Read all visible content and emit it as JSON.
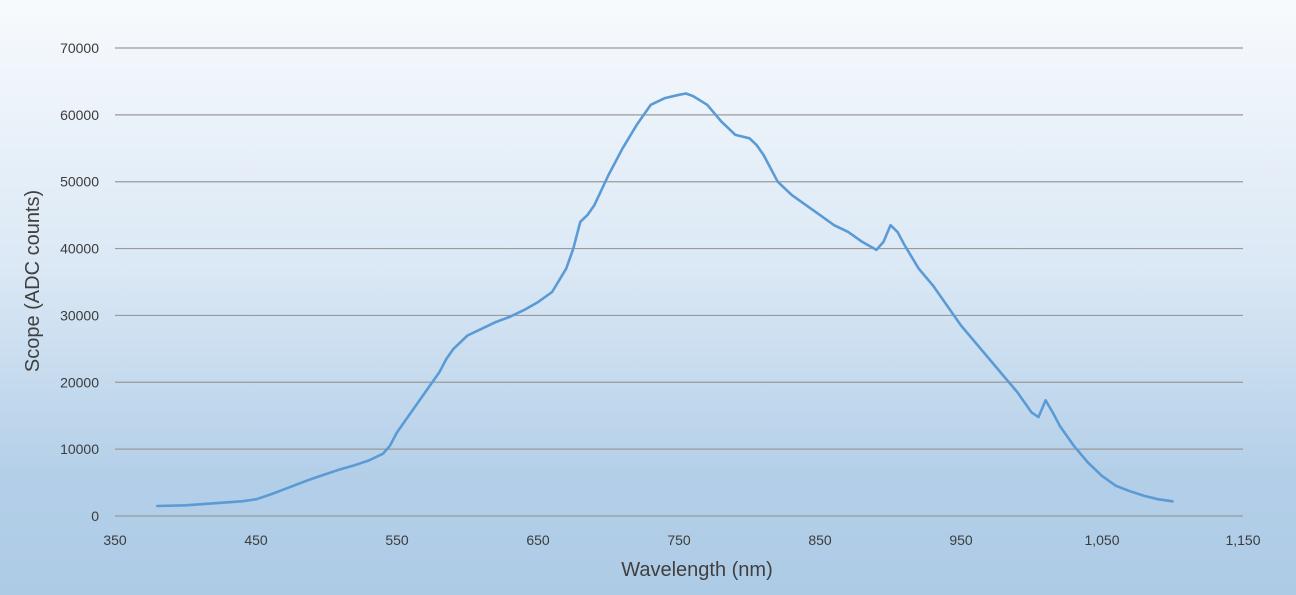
{
  "chart_data": {
    "type": "line",
    "title": "",
    "xlabel": "Wavelength (nm)",
    "ylabel": "Scope (ADC counts)",
    "xlim": [
      350,
      1150
    ],
    "ylim": [
      0,
      70000
    ],
    "x_ticks": [
      350,
      450,
      550,
      650,
      750,
      850,
      950,
      1050,
      1150
    ],
    "x_tick_labels": [
      "350",
      "450",
      "550",
      "650",
      "750",
      "850",
      "950",
      "1,050",
      "1,150"
    ],
    "y_ticks": [
      0,
      10000,
      20000,
      30000,
      40000,
      50000,
      60000,
      70000
    ],
    "y_tick_labels": [
      "0",
      "10000",
      "20000",
      "30000",
      "40000",
      "50000",
      "60000",
      "70000"
    ],
    "grid": true,
    "legend": "none",
    "line_color": "#5b9bd5",
    "series": [
      {
        "x": [
          380,
          400,
          420,
          440,
          450,
          460,
          470,
          480,
          490,
          500,
          510,
          520,
          530,
          540,
          545,
          550,
          555,
          560,
          570,
          580,
          585,
          590,
          600,
          610,
          620,
          630,
          640,
          650,
          660,
          670,
          675,
          680,
          685,
          690,
          700,
          710,
          720,
          730,
          740,
          750,
          755,
          760,
          770,
          780,
          790,
          800,
          805,
          810,
          820,
          830,
          840,
          850,
          860,
          870,
          880,
          890,
          895,
          900,
          905,
          910,
          920,
          930,
          940,
          950,
          960,
          970,
          980,
          990,
          1000,
          1005,
          1010,
          1015,
          1020,
          1030,
          1040,
          1050,
          1060,
          1070,
          1080,
          1090,
          1100
        ],
        "y": [
          1500,
          1600,
          1900,
          2200,
          2500,
          3200,
          4000,
          4800,
          5600,
          6300,
          7000,
          7600,
          8300,
          9300,
          10500,
          12500,
          14000,
          15500,
          18500,
          21500,
          23500,
          25000,
          27000,
          28000,
          29000,
          29800,
          30800,
          32000,
          33500,
          37000,
          40000,
          44000,
          45000,
          46500,
          51000,
          55000,
          58500,
          61500,
          62500,
          63000,
          63200,
          62800,
          61500,
          59000,
          57000,
          56500,
          55500,
          54000,
          50000,
          48000,
          46500,
          45000,
          43500,
          42500,
          41000,
          39800,
          41000,
          43500,
          42500,
          40500,
          37000,
          34500,
          31500,
          28500,
          26000,
          23500,
          21000,
          18500,
          15500,
          14800,
          17300,
          15500,
          13500,
          10500,
          8000,
          6000,
          4500,
          3700,
          3000,
          2500,
          2200
        ]
      }
    ]
  }
}
